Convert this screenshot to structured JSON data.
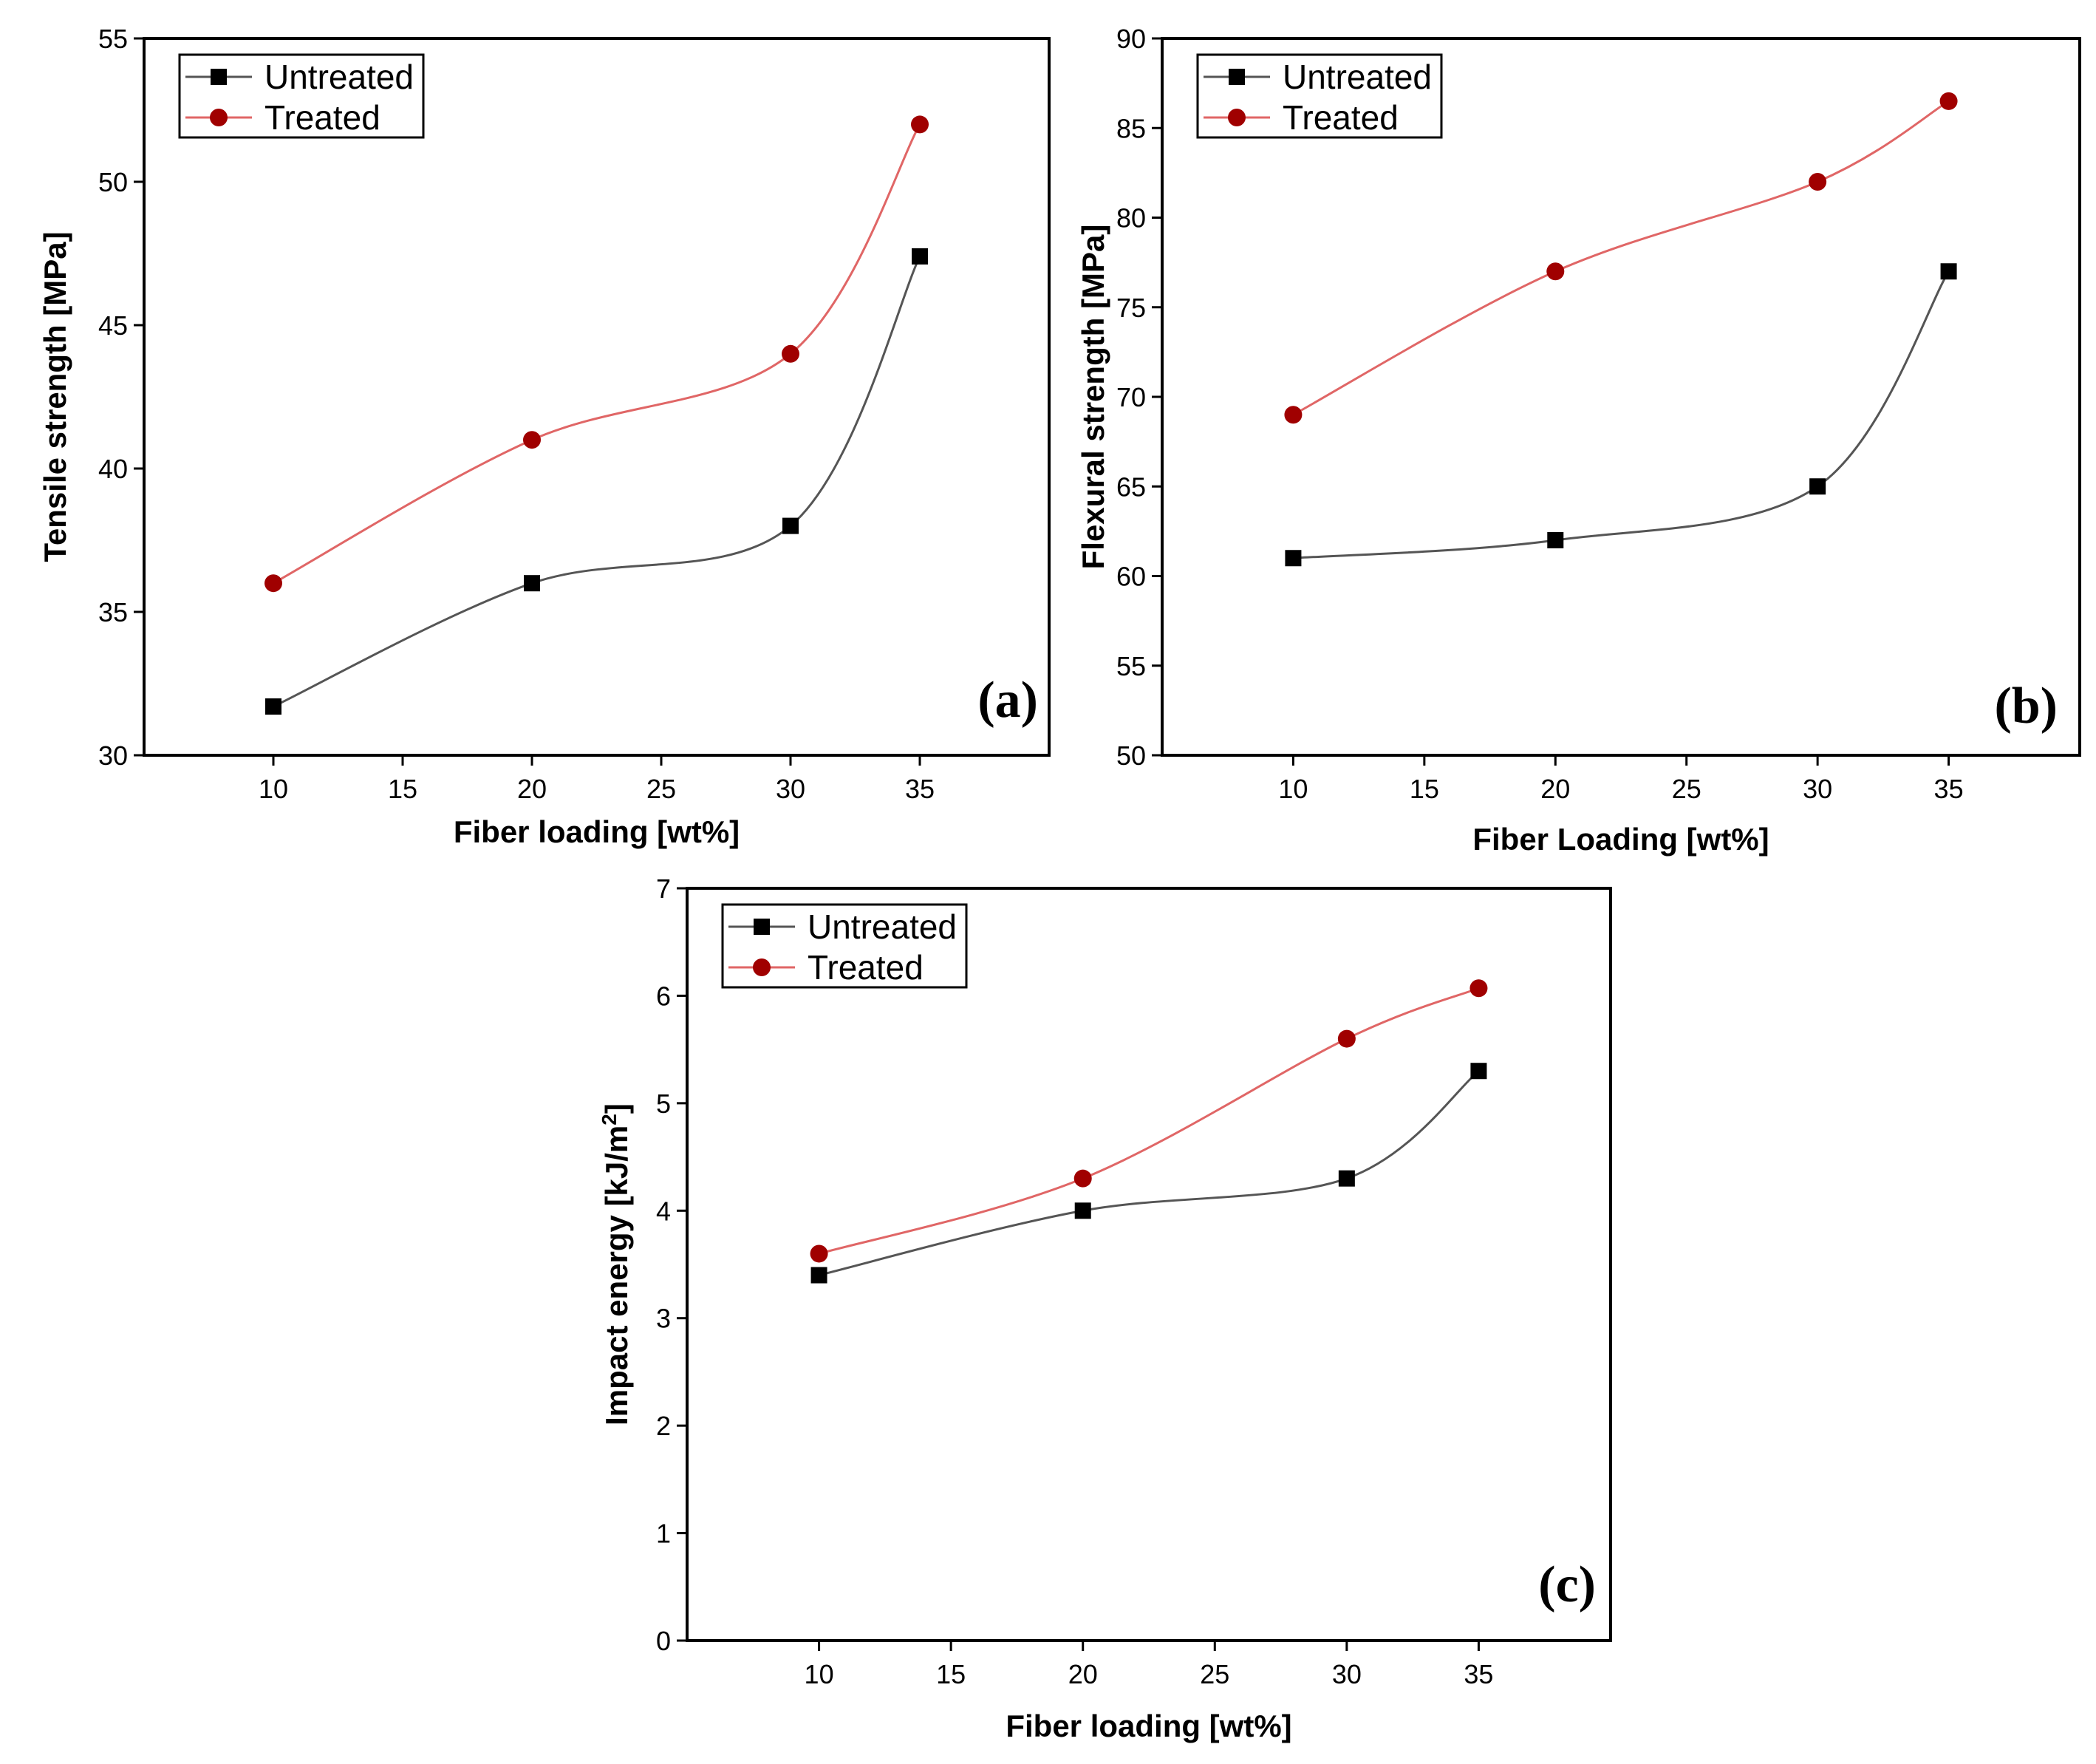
{
  "chart_data": [
    {
      "type": "line",
      "panel_label": "(a)",
      "xlabel": "Fiber loading [wt%]",
      "ylabel": "Tensile strength [MPa]",
      "xlim": [
        5,
        40
      ],
      "ylim": [
        30,
        55
      ],
      "xticks": [
        10,
        15,
        20,
        25,
        30,
        35
      ],
      "yticks": [
        30,
        35,
        40,
        45,
        50,
        55
      ],
      "x": [
        10,
        20,
        30,
        35
      ],
      "legend_position": "top-left",
      "series": [
        {
          "name": "Untreated",
          "values": [
            31.7,
            36.0,
            38.0,
            47.4
          ],
          "marker": "square",
          "color": "#000000",
          "line_color": "#555555"
        },
        {
          "name": "Treated",
          "values": [
            36.0,
            41.0,
            44.0,
            52.0
          ],
          "marker": "circle",
          "color": "#a00000",
          "line_color": "#e06666"
        }
      ]
    },
    {
      "type": "line",
      "panel_label": "(b)",
      "xlabel": "Fiber Loading [wt%]",
      "ylabel": "Flexural strength [MPa]",
      "xlim": [
        5,
        40
      ],
      "ylim": [
        50,
        90
      ],
      "xticks": [
        10,
        15,
        20,
        25,
        30,
        35
      ],
      "yticks": [
        50,
        55,
        60,
        65,
        70,
        75,
        80,
        85,
        90
      ],
      "x": [
        10,
        20,
        30,
        35
      ],
      "legend_position": "top-left",
      "series": [
        {
          "name": "Untreated",
          "values": [
            61.0,
            62.0,
            65.0,
            77.0
          ],
          "marker": "square",
          "color": "#000000",
          "line_color": "#555555"
        },
        {
          "name": "Treated",
          "values": [
            69.0,
            77.0,
            82.0,
            86.5
          ],
          "marker": "circle",
          "color": "#a00000",
          "line_color": "#e06666"
        }
      ]
    },
    {
      "type": "line",
      "panel_label": "(c)",
      "xlabel": "Fiber loading [wt%]",
      "ylabel": "Impact energy [kJ/m",
      "ylabel_sup": "2",
      "ylabel_end": "]",
      "xlim": [
        5,
        40
      ],
      "ylim": [
        0,
        7
      ],
      "xticks": [
        10,
        15,
        20,
        25,
        30,
        35
      ],
      "yticks": [
        0,
        1,
        2,
        3,
        4,
        5,
        6,
        7
      ],
      "x": [
        10,
        20,
        30,
        35
      ],
      "legend_position": "top-left",
      "series": [
        {
          "name": "Untreated",
          "values": [
            3.4,
            4.0,
            4.3,
            5.3
          ],
          "marker": "square",
          "color": "#000000",
          "line_color": "#555555"
        },
        {
          "name": "Treated",
          "values": [
            3.6,
            4.3,
            5.6,
            6.07
          ],
          "marker": "circle",
          "color": "#a00000",
          "line_color": "#e06666"
        }
      ]
    }
  ]
}
